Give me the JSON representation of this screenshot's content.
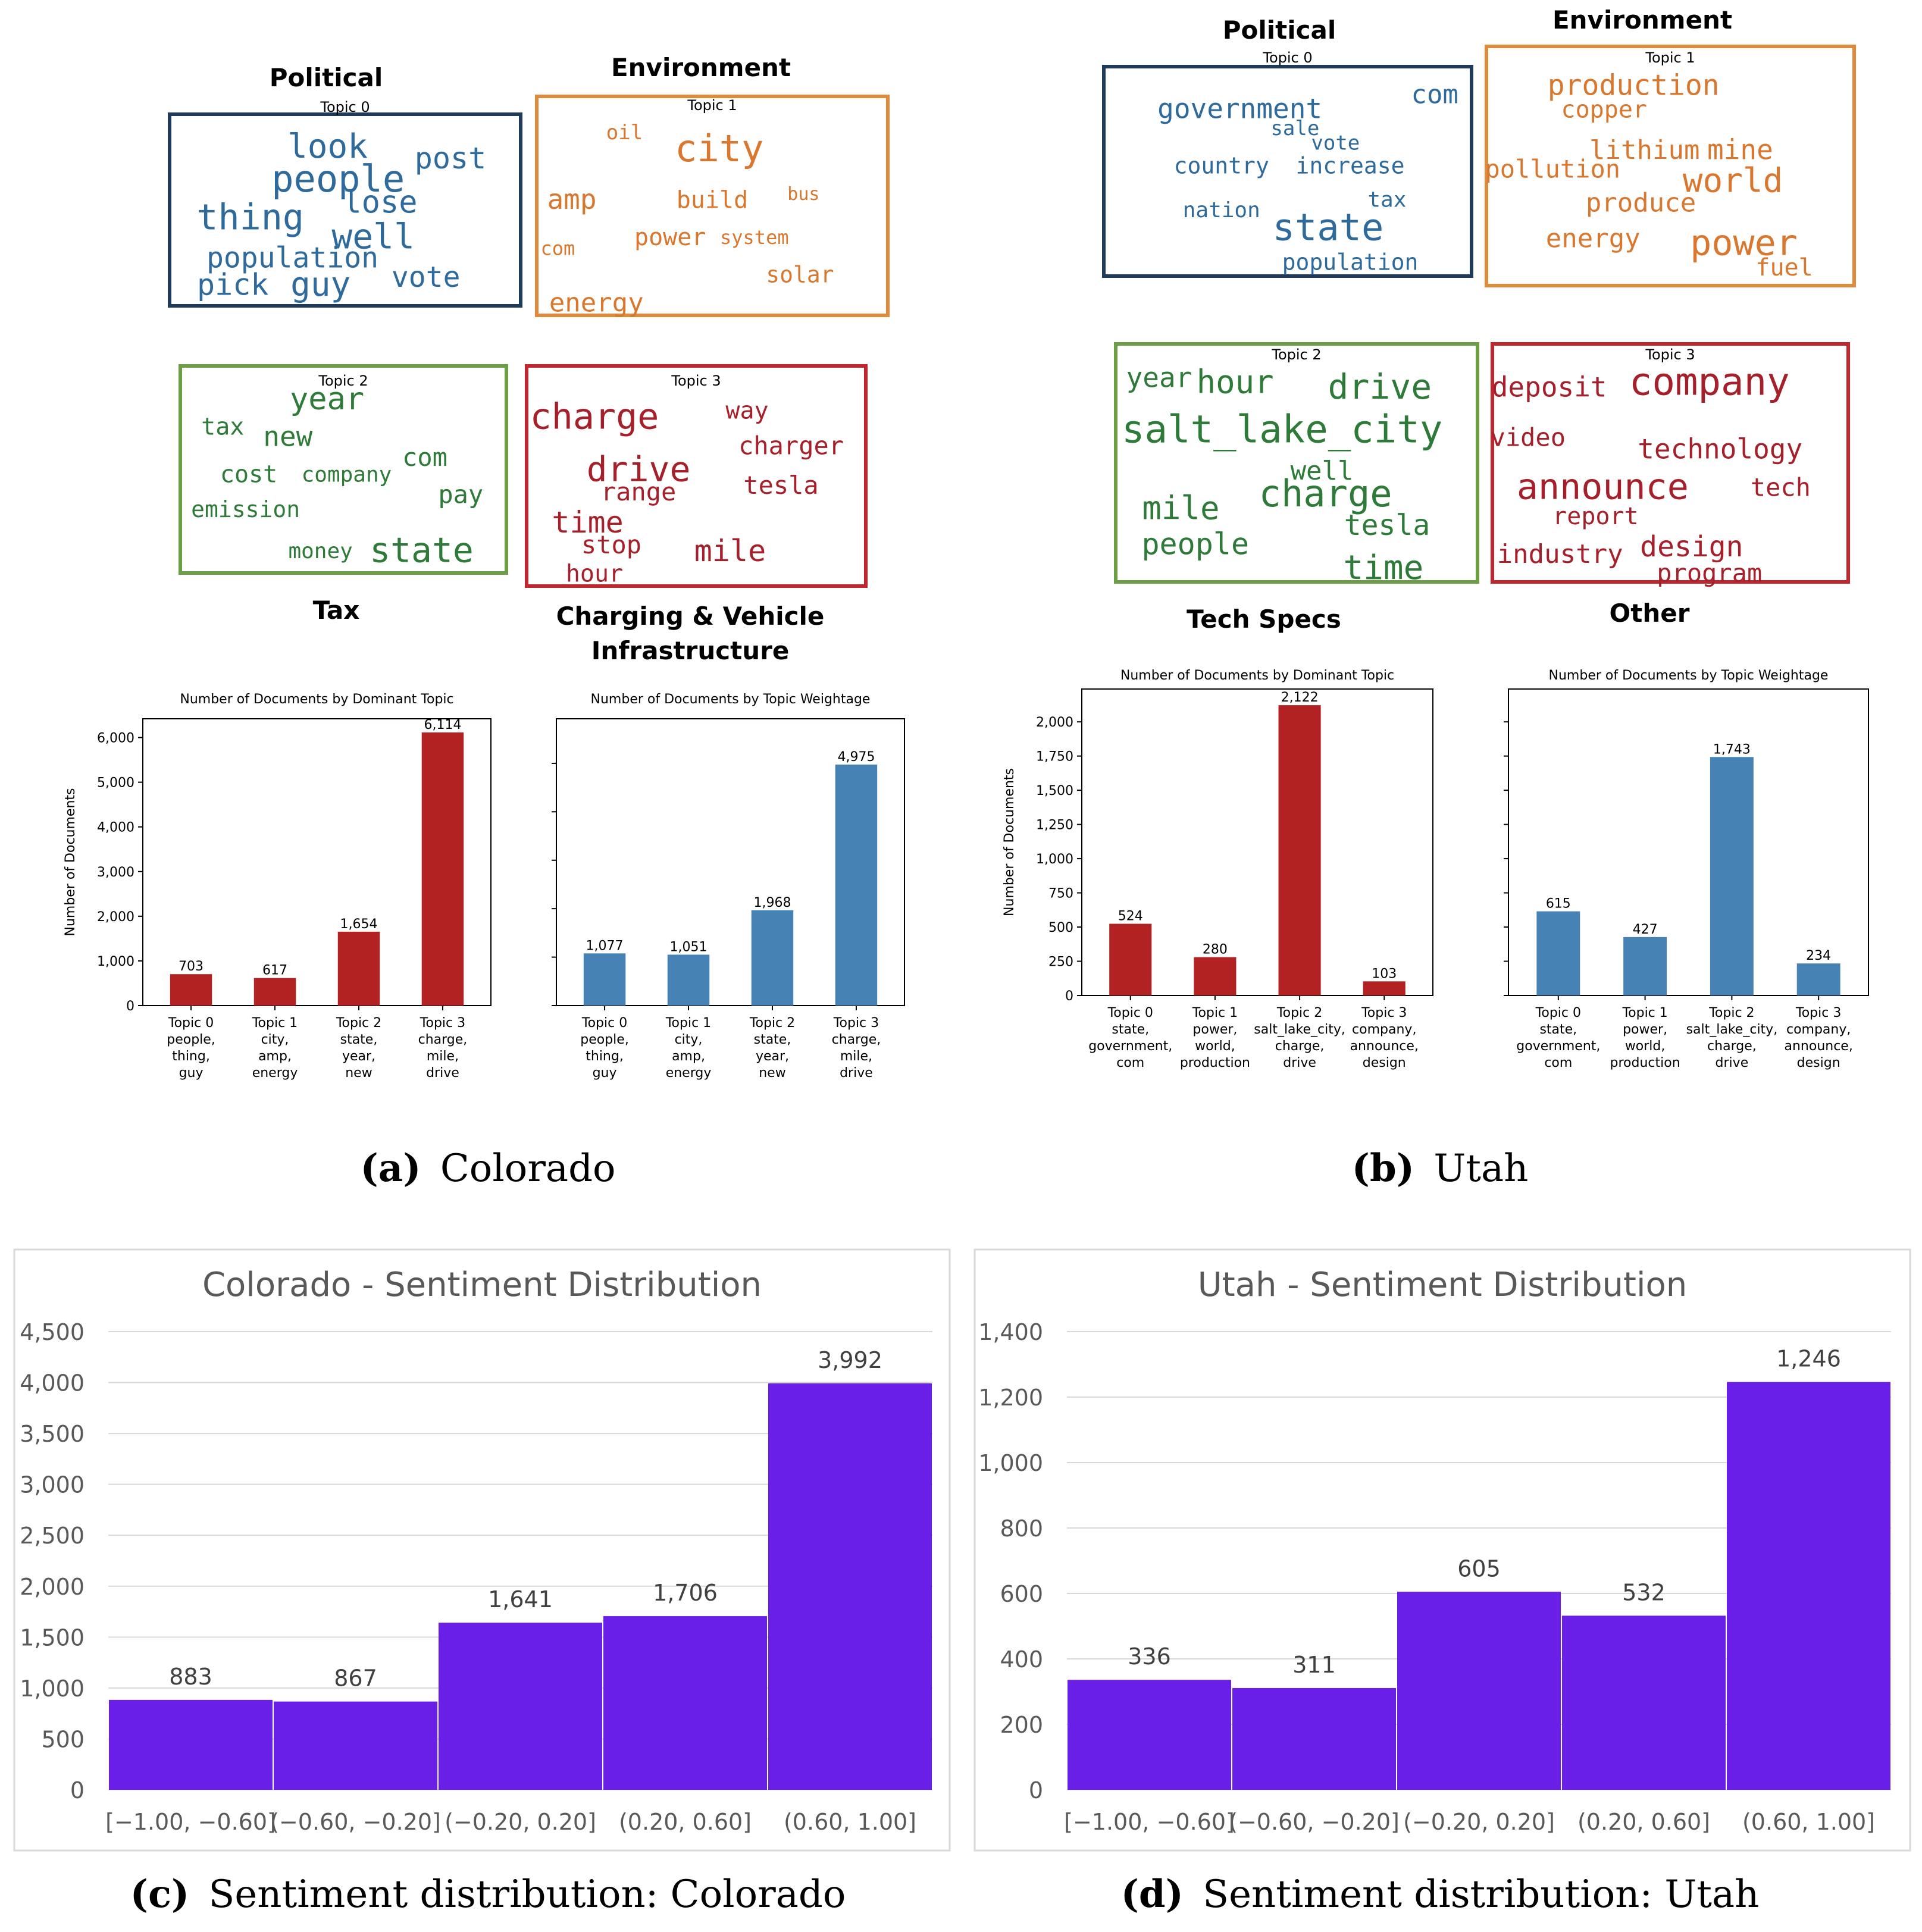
{
  "wordclouds": [
    {
      "id": "co",
      "panels": [
        {
          "topic": "Topic 0",
          "name": "Political",
          "color": "#1f3a5a",
          "text_color": "#2e6a9c",
          "words": [
            [
              "look",
              56
            ],
            [
              "post",
              50
            ],
            [
              "people",
              62
            ],
            [
              "thing",
              60
            ],
            [
              "lose",
              52
            ],
            [
              "well",
              58
            ],
            [
              "population",
              48
            ],
            [
              "pick",
              50
            ],
            [
              "guy",
              56
            ],
            [
              "vote",
              48
            ]
          ]
        },
        {
          "topic": "Topic 1",
          "name": "Environment",
          "color": "#e08a3c",
          "text_color": "#d9772e",
          "words": [
            [
              "oil",
              34
            ],
            [
              "city",
              62
            ],
            [
              "amp",
              46
            ],
            [
              "build",
              40
            ],
            [
              "bus",
              30
            ],
            [
              "com",
              32
            ],
            [
              "power",
              40
            ],
            [
              "system",
              32
            ],
            [
              "solar",
              38
            ],
            [
              "energy",
              44
            ]
          ]
        },
        {
          "topic": "Topic 2",
          "name": "Tax",
          "color": "#6b9e46",
          "text_color": "#2e7a38",
          "words": [
            [
              "year",
              52
            ],
            [
              "tax",
              40
            ],
            [
              "new",
              46
            ],
            [
              "com",
              42
            ],
            [
              "cost",
              40
            ],
            [
              "company",
              36
            ],
            [
              "pay",
              42
            ],
            [
              "emission",
              38
            ],
            [
              "money",
              36
            ],
            [
              "state",
              58
            ]
          ]
        },
        {
          "topic": "Topic 3",
          "name": "Charging & Vehicle Infrastructure",
          "color": "#c0262e",
          "text_color": "#a5202a",
          "words": [
            [
              "charge",
              60
            ],
            [
              "way",
              40
            ],
            [
              "charger",
              42
            ],
            [
              "drive",
              58
            ],
            [
              "range",
              42
            ],
            [
              "tesla",
              42
            ],
            [
              "time",
              50
            ],
            [
              "stop",
              42
            ],
            [
              "mile",
              50
            ],
            [
              "hour",
              40
            ]
          ]
        }
      ]
    },
    {
      "id": "ut",
      "panels": [
        {
          "topic": "Topic 0",
          "name": "Political",
          "color": "#1f3a5a",
          "text_color": "#2e6a9c",
          "words": [
            [
              "com",
              44
            ],
            [
              "government",
              46
            ],
            [
              "sale",
              34
            ],
            [
              "vote",
              34
            ],
            [
              "country",
              38
            ],
            [
              "increase",
              38
            ],
            [
              "tax",
              36
            ],
            [
              "nation",
              36
            ],
            [
              "state",
              62
            ],
            [
              "population",
              38
            ]
          ]
        },
        {
          "topic": "Topic 1",
          "name": "Environment",
          "color": "#e08a3c",
          "text_color": "#d9772e",
          "words": [
            [
              "production",
              48
            ],
            [
              "copper",
              40
            ],
            [
              "lithium",
              44
            ],
            [
              "mine",
              46
            ],
            [
              "pollution",
              42
            ],
            [
              "world",
              56
            ],
            [
              "produce",
              44
            ],
            [
              "energy",
              44
            ],
            [
              "power",
              60
            ],
            [
              "fuel",
              40
            ]
          ]
        },
        {
          "topic": "Topic 2",
          "name": "Tech Specs",
          "color": "#6b9e46",
          "text_color": "#2e7a38",
          "words": [
            [
              "year",
              46
            ],
            [
              "hour",
              54
            ],
            [
              "drive",
              58
            ],
            [
              "salt_lake_city",
              64
            ],
            [
              "well",
              44
            ],
            [
              "charge",
              62
            ],
            [
              "mile",
              54
            ],
            [
              "people",
              50
            ],
            [
              "tesla",
              48
            ],
            [
              "time",
              56
            ]
          ]
        },
        {
          "topic": "Topic 3",
          "name": "Other",
          "color": "#c0262e",
          "text_color": "#a5202a",
          "words": [
            [
              "deposit",
              46
            ],
            [
              "company",
              64
            ],
            [
              "video",
              42
            ],
            [
              "technology",
              46
            ],
            [
              "announce",
              60
            ],
            [
              "tech",
              42
            ],
            [
              "report",
              40
            ],
            [
              "industry",
              44
            ],
            [
              "design",
              48
            ],
            [
              "program",
              42
            ]
          ]
        }
      ]
    }
  ],
  "chart_data": [
    {
      "id": "co_dominant",
      "type": "bar",
      "title": "Number of Documents by Dominant Topic",
      "ylabel": "Number of Documents",
      "categories": [
        [
          "Topic 0",
          "people,",
          "thing,",
          "guy"
        ],
        [
          "Topic 1",
          "city,",
          "amp,",
          "energy"
        ],
        [
          "Topic 2",
          "state,",
          "year,",
          "new"
        ],
        [
          "Topic 3",
          "charge,",
          "mile,",
          "drive"
        ]
      ],
      "values": [
        703,
        617,
        1654,
        6114
      ],
      "labels": [
        "703",
        "617",
        "1,654",
        "6,114"
      ],
      "ylim": [
        0,
        6420
      ],
      "yticks": [
        0,
        1000,
        2000,
        3000,
        4000,
        5000,
        6000
      ],
      "ytick_labels": [
        "0",
        "1,000",
        "2,000",
        "3,000",
        "4,000",
        "5,000",
        "6,000"
      ],
      "color": "#b22222"
    },
    {
      "id": "co_weight",
      "type": "bar",
      "title": "Number of Documents by Topic Weightage",
      "ylabel": "",
      "categories": [
        [
          "Topic 0",
          "people,",
          "thing,",
          "guy"
        ],
        [
          "Topic 1",
          "city,",
          "amp,",
          "energy"
        ],
        [
          "Topic 2",
          "state,",
          "year,",
          "new"
        ],
        [
          "Topic 3",
          "charge,",
          "mile,",
          "drive"
        ]
      ],
      "values": [
        1077,
        1051,
        1968,
        4975
      ],
      "labels": [
        "1,077",
        "1,051",
        "1,968",
        "4,975"
      ],
      "ylim": [
        0,
        5920
      ],
      "yticks": [
        0,
        1000,
        2000,
        3000,
        4000,
        5000
      ],
      "ytick_labels": [
        "",
        "",
        "",
        "",
        "",
        ""
      ],
      "color": "#4682b4"
    },
    {
      "id": "ut_dominant",
      "type": "bar",
      "title": "Number of Documents by Dominant Topic",
      "ylabel": "Number of Documents",
      "categories": [
        [
          "Topic 0",
          "state,",
          "government,",
          "com"
        ],
        [
          "Topic 1",
          "power,",
          "world,",
          "production"
        ],
        [
          "Topic 2",
          "salt_lake_city,",
          "charge,",
          "drive"
        ],
        [
          "Topic 3",
          "company,",
          "announce,",
          "design"
        ]
      ],
      "values": [
        524,
        280,
        2122,
        103
      ],
      "labels": [
        "524",
        "280",
        "2,122",
        "103"
      ],
      "ylim": [
        0,
        2240
      ],
      "yticks": [
        0,
        250,
        500,
        750,
        1000,
        1250,
        1500,
        1750,
        2000
      ],
      "ytick_labels": [
        "0",
        "250",
        "500",
        "750",
        "1,000",
        "1,250",
        "1,500",
        "1,750",
        "2,000"
      ],
      "color": "#b22222"
    },
    {
      "id": "ut_weight",
      "type": "bar",
      "title": "Number of Documents by Topic Weightage",
      "ylabel": "",
      "categories": [
        [
          "Topic 0",
          "state,",
          "government,",
          "com"
        ],
        [
          "Topic 1",
          "power,",
          "world,",
          "production"
        ],
        [
          "Topic 2",
          "salt_lake_city,",
          "charge,",
          "drive"
        ],
        [
          "Topic 3",
          "company,",
          "announce,",
          "design"
        ]
      ],
      "values": [
        615,
        427,
        1743,
        234
      ],
      "labels": [
        "615",
        "427",
        "1,743",
        "234"
      ],
      "ylim": [
        0,
        2240
      ],
      "yticks": [
        0,
        250,
        500,
        750,
        1000,
        1250,
        1500,
        1750,
        2000
      ],
      "ytick_labels": [
        "",
        "",
        "",
        "",
        "",
        "",
        "",
        "",
        ""
      ],
      "color": "#4682b4"
    },
    {
      "id": "co_sentiment",
      "type": "histogram",
      "title": "Colorado - Sentiment Distribution",
      "categories": [
        "[−1.00, −0.60]",
        "(−0.60, −0.20]",
        "(−0.20, 0.20]",
        "(0.20, 0.60]",
        "(0.60, 1.00]"
      ],
      "values": [
        883,
        867,
        1641,
        1706,
        3992
      ],
      "labels": [
        "883",
        "867",
        "1,641",
        "1,706",
        "3,992"
      ],
      "ylim": [
        0,
        4500
      ],
      "yticks": [
        0,
        500,
        1000,
        1500,
        2000,
        2500,
        3000,
        3500,
        4000,
        4500
      ],
      "ytick_labels": [
        "0",
        "500",
        "1,000",
        "1,500",
        "2,000",
        "2,500",
        "3,000",
        "3,500",
        "4,000",
        "4,500"
      ],
      "color": "#6a1fe8"
    },
    {
      "id": "ut_sentiment",
      "type": "histogram",
      "title": "Utah - Sentiment Distribution",
      "categories": [
        "[−1.00, −0.60]",
        "(−0.60, −0.20]",
        "(−0.20, 0.20]",
        "(0.20, 0.60]",
        "(0.60, 1.00]"
      ],
      "values": [
        336,
        311,
        605,
        532,
        1246
      ],
      "labels": [
        "336",
        "311",
        "605",
        "532",
        "1,246"
      ],
      "ylim": [
        0,
        1400
      ],
      "yticks": [
        0,
        200,
        400,
        600,
        800,
        1000,
        1200,
        1400
      ],
      "ytick_labels": [
        "0",
        "200",
        "400",
        "600",
        "800",
        "1,000",
        "1,200",
        "1,400"
      ],
      "color": "#6a1fe8"
    }
  ],
  "captions": {
    "a_letter": "(a)",
    "a_text": "Colorado",
    "b_letter": "(b)",
    "b_text": "Utah",
    "c_letter": "(c)",
    "c_text": "Sentiment distribution: Colorado",
    "d_letter": "(d)",
    "d_text": "Sentiment distribution: Utah"
  }
}
